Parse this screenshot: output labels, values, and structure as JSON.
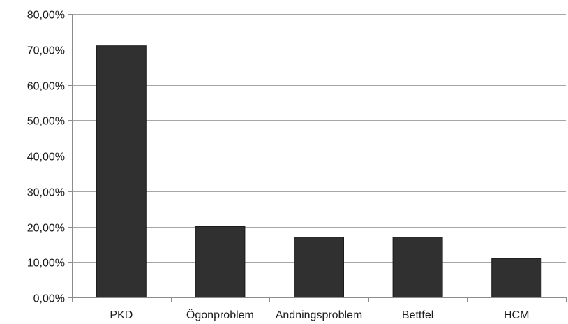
{
  "chart_data": {
    "type": "bar",
    "title": "",
    "xlabel": "",
    "ylabel": "",
    "categories": [
      "PKD",
      "Ögonproblem",
      "Andningsproblem",
      "Bettfel",
      "HCM"
    ],
    "values": [
      71.0,
      20.0,
      17.0,
      17.0,
      11.0
    ],
    "ylim": [
      0,
      80
    ],
    "yticks": [
      0,
      10,
      20,
      30,
      40,
      50,
      60,
      70,
      80
    ],
    "ytick_labels": [
      "0,00%",
      "10,00%",
      "20,00%",
      "30,00%",
      "40,00%",
      "50,00%",
      "60,00%",
      "70,00%",
      "80,00%"
    ],
    "grid": true,
    "legend": "none",
    "bar_color": "#303030"
  }
}
